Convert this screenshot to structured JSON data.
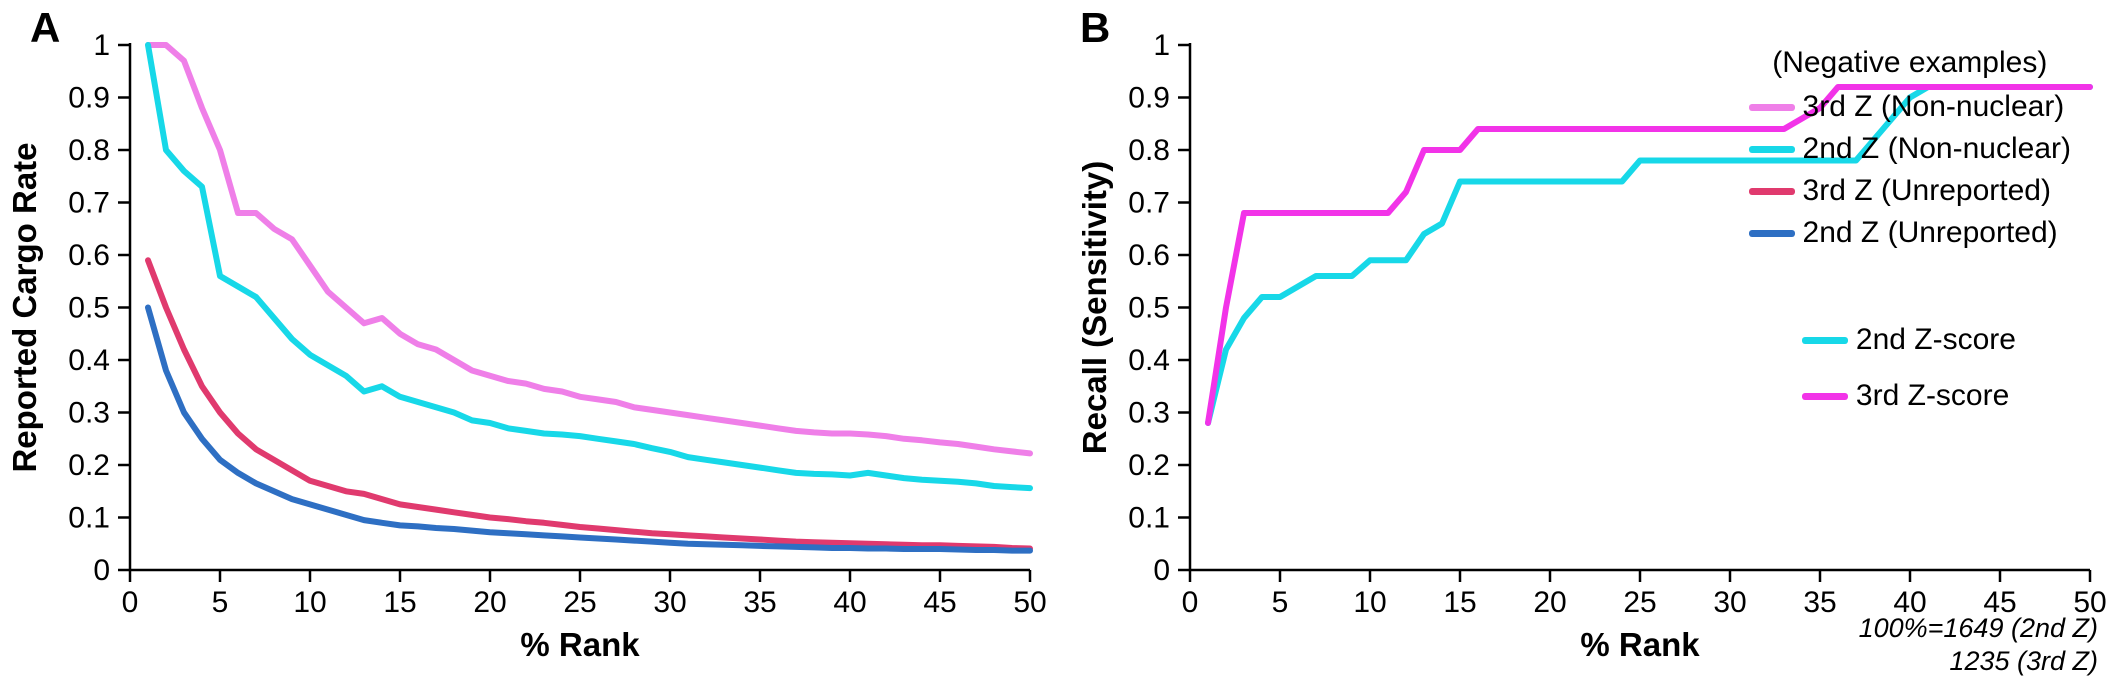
{
  "panels": {
    "a": {
      "label": "A",
      "legend_title": "(Negative examples)",
      "footnote_line1": "100%=1649 (2nd Z)",
      "footnote_line2": "1235 (3rd Z)"
    },
    "b": {
      "label": "B"
    }
  },
  "chart_data": [
    {
      "type": "line",
      "panel": "A",
      "title": "",
      "xlabel": "% Rank",
      "ylabel": "Reported Cargo Rate",
      "xlim": [
        0,
        50
      ],
      "ylim": [
        0,
        1
      ],
      "grid": false,
      "legend_position": "top-right",
      "legend_title": "(Negative examples)",
      "annotations": [
        "100%=1649 (2nd Z)",
        "1235 (3rd Z)"
      ],
      "xticks": [
        0,
        5,
        10,
        15,
        20,
        25,
        30,
        35,
        40,
        45,
        50
      ],
      "xtick_labels": [
        "0",
        "5",
        "10",
        "15",
        "20",
        "25",
        "30",
        "35",
        "40",
        "45",
        "50"
      ],
      "yticks": [
        0,
        0.1,
        0.2,
        0.3,
        0.4,
        0.5,
        0.6,
        0.7,
        0.8,
        0.9,
        1
      ],
      "ytick_labels": [
        "0",
        "0.1",
        "0.2",
        "0.3",
        "0.4",
        "0.5",
        "0.6",
        "0.7",
        "0.8",
        "0.9",
        "1"
      ],
      "x": [
        1,
        2,
        3,
        4,
        5,
        6,
        7,
        8,
        9,
        10,
        11,
        12,
        13,
        14,
        15,
        16,
        17,
        18,
        19,
        20,
        21,
        22,
        23,
        24,
        25,
        26,
        27,
        28,
        29,
        30,
        31,
        32,
        33,
        34,
        35,
        36,
        37,
        38,
        39,
        40,
        41,
        42,
        43,
        44,
        45,
        46,
        47,
        48,
        49,
        50
      ],
      "series": [
        {
          "name": "3rd Z (Non-nuclear)",
          "color": "#ef7fe8",
          "values": [
            1.0,
            1.0,
            0.97,
            0.88,
            0.8,
            0.68,
            0.68,
            0.65,
            0.63,
            0.58,
            0.53,
            0.5,
            0.47,
            0.48,
            0.45,
            0.43,
            0.42,
            0.4,
            0.38,
            0.37,
            0.36,
            0.355,
            0.345,
            0.34,
            0.33,
            0.325,
            0.32,
            0.31,
            0.305,
            0.3,
            0.295,
            0.29,
            0.285,
            0.28,
            0.275,
            0.27,
            0.265,
            0.262,
            0.26,
            0.26,
            0.258,
            0.255,
            0.25,
            0.247,
            0.243,
            0.24,
            0.235,
            0.23,
            0.226,
            0.222
          ]
        },
        {
          "name": "2nd Z (Non-nuclear)",
          "color": "#17d8e8",
          "values": [
            1.0,
            0.8,
            0.76,
            0.73,
            0.56,
            0.54,
            0.52,
            0.48,
            0.44,
            0.41,
            0.39,
            0.37,
            0.34,
            0.35,
            0.33,
            0.32,
            0.31,
            0.3,
            0.285,
            0.28,
            0.27,
            0.265,
            0.26,
            0.258,
            0.255,
            0.25,
            0.245,
            0.24,
            0.232,
            0.225,
            0.215,
            0.21,
            0.205,
            0.2,
            0.195,
            0.19,
            0.185,
            0.183,
            0.182,
            0.18,
            0.185,
            0.18,
            0.175,
            0.172,
            0.17,
            0.168,
            0.165,
            0.16,
            0.158,
            0.156
          ]
        },
        {
          "name": "3rd Z (Unreported)",
          "color": "#e03a6e",
          "values": [
            0.59,
            0.5,
            0.42,
            0.35,
            0.3,
            0.26,
            0.23,
            0.21,
            0.19,
            0.17,
            0.16,
            0.15,
            0.145,
            0.135,
            0.125,
            0.12,
            0.115,
            0.11,
            0.105,
            0.1,
            0.097,
            0.093,
            0.09,
            0.086,
            0.082,
            0.079,
            0.076,
            0.073,
            0.07,
            0.068,
            0.066,
            0.064,
            0.062,
            0.06,
            0.058,
            0.056,
            0.054,
            0.053,
            0.052,
            0.051,
            0.05,
            0.049,
            0.048,
            0.047,
            0.047,
            0.046,
            0.045,
            0.044,
            0.042,
            0.041
          ]
        },
        {
          "name": "2nd Z (Unreported)",
          "color": "#2e6fc3",
          "values": [
            0.5,
            0.38,
            0.3,
            0.25,
            0.21,
            0.185,
            0.165,
            0.15,
            0.135,
            0.125,
            0.115,
            0.105,
            0.095,
            0.09,
            0.085,
            0.083,
            0.08,
            0.078,
            0.075,
            0.072,
            0.07,
            0.068,
            0.066,
            0.064,
            0.062,
            0.06,
            0.058,
            0.056,
            0.054,
            0.052,
            0.05,
            0.049,
            0.048,
            0.047,
            0.046,
            0.045,
            0.044,
            0.043,
            0.042,
            0.042,
            0.041,
            0.041,
            0.04,
            0.04,
            0.04,
            0.039,
            0.038,
            0.038,
            0.037,
            0.037
          ]
        }
      ]
    },
    {
      "type": "line",
      "panel": "B",
      "title": "",
      "xlabel": "% Rank",
      "ylabel": "Recall (Sensitivity)",
      "xlim": [
        0,
        50
      ],
      "ylim": [
        0,
        1
      ],
      "grid": false,
      "legend_position": "right",
      "xticks": [
        0,
        5,
        10,
        15,
        20,
        25,
        30,
        35,
        40,
        45,
        50
      ],
      "xtick_labels": [
        "0",
        "5",
        "10",
        "15",
        "20",
        "25",
        "30",
        "35",
        "40",
        "45",
        "50"
      ],
      "yticks": [
        0,
        0.1,
        0.2,
        0.3,
        0.4,
        0.5,
        0.6,
        0.7,
        0.8,
        0.9,
        1
      ],
      "ytick_labels": [
        "0",
        "0.1",
        "0.2",
        "0.3",
        "0.4",
        "0.5",
        "0.6",
        "0.7",
        "0.8",
        "0.9",
        "1"
      ],
      "x": [
        1,
        2,
        3,
        4,
        5,
        6,
        7,
        8,
        9,
        10,
        11,
        12,
        13,
        14,
        15,
        16,
        17,
        18,
        19,
        20,
        21,
        22,
        23,
        24,
        25,
        26,
        27,
        28,
        29,
        30,
        31,
        32,
        33,
        34,
        35,
        36,
        37,
        38,
        39,
        40,
        41,
        42,
        43,
        44,
        45,
        46,
        47,
        48,
        49,
        50
      ],
      "series": [
        {
          "name": "2nd Z-score",
          "color": "#17d8e8",
          "values": [
            0.28,
            0.42,
            0.48,
            0.52,
            0.52,
            0.54,
            0.56,
            0.56,
            0.56,
            0.59,
            0.59,
            0.59,
            0.64,
            0.66,
            0.74,
            0.74,
            0.74,
            0.74,
            0.74,
            0.74,
            0.74,
            0.74,
            0.74,
            0.74,
            0.78,
            0.78,
            0.78,
            0.78,
            0.78,
            0.78,
            0.78,
            0.78,
            0.78,
            0.78,
            0.78,
            0.78,
            0.78,
            0.82,
            0.86,
            0.9,
            0.92,
            0.92,
            0.92,
            0.92,
            0.92,
            0.92,
            0.92,
            0.92,
            0.92,
            0.92
          ]
        },
        {
          "name": "3rd Z-score",
          "color": "#f233e8",
          "values": [
            0.28,
            0.5,
            0.68,
            0.68,
            0.68,
            0.68,
            0.68,
            0.68,
            0.68,
            0.68,
            0.68,
            0.72,
            0.8,
            0.8,
            0.8,
            0.84,
            0.84,
            0.84,
            0.84,
            0.84,
            0.84,
            0.84,
            0.84,
            0.84,
            0.84,
            0.84,
            0.84,
            0.84,
            0.84,
            0.84,
            0.84,
            0.84,
            0.84,
            0.86,
            0.88,
            0.92,
            0.92,
            0.92,
            0.92,
            0.92,
            0.92,
            0.92,
            0.92,
            0.92,
            0.92,
            0.92,
            0.92,
            0.92,
            0.92,
            0.92
          ]
        }
      ]
    }
  ]
}
